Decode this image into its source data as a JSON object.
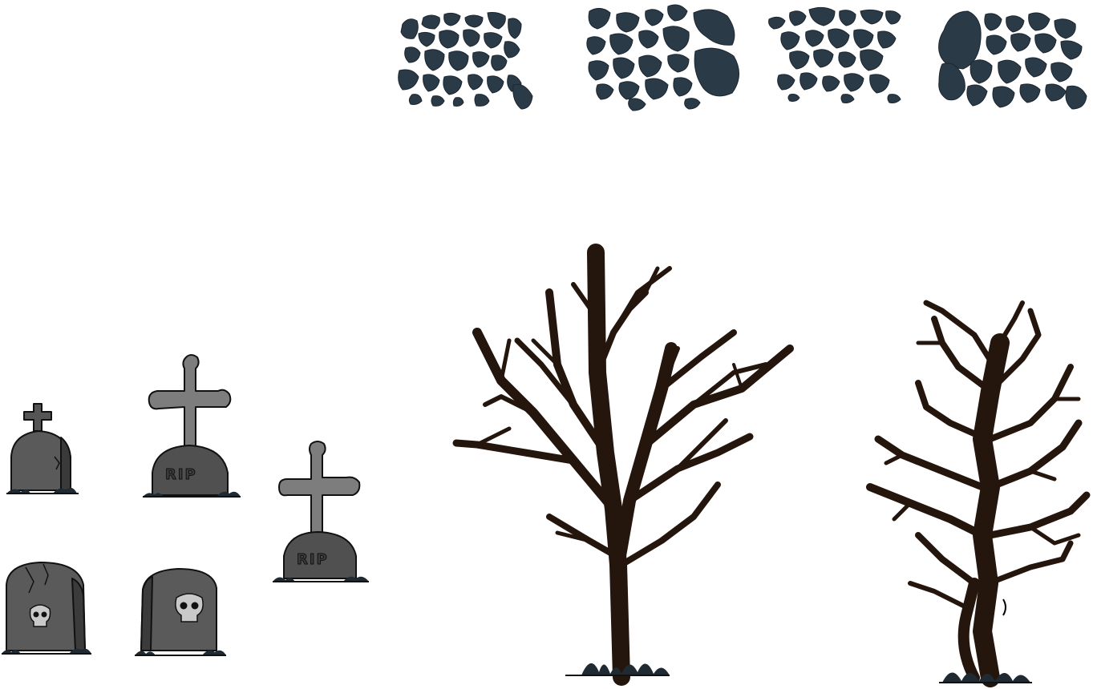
{
  "scene": {
    "type": "sprite-sheet",
    "theme": "graveyard"
  },
  "palette": {
    "stone_fill": "#2b3a47",
    "stone_outline": "#1b2630",
    "grave_dark": "#4a4a4a",
    "grave_mid": "#5a5a5a",
    "cross_fill": "#7d7d7d",
    "outline": "#111111",
    "tree_fill": "#24150d",
    "grass": "#1f2a33"
  },
  "gravestones": {
    "rip_inscription": "RIP"
  }
}
